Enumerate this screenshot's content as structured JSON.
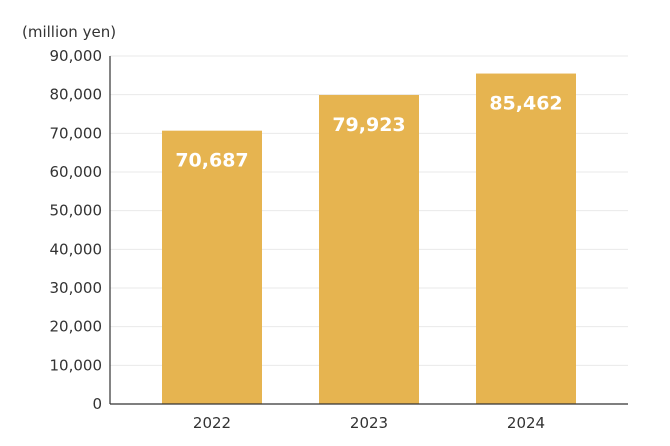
{
  "chart_data": {
    "type": "bar",
    "unit_label": "(million yen)",
    "title": "",
    "xlabel": "",
    "ylabel": "",
    "categories": [
      "2022",
      "2023",
      "2024"
    ],
    "values": [
      70687,
      79923,
      85462
    ],
    "value_labels": [
      "70,687",
      "79,923",
      "85,462"
    ],
    "y_ticks": [
      0,
      10000,
      20000,
      30000,
      40000,
      50000,
      60000,
      70000,
      80000,
      90000
    ],
    "y_tick_labels": [
      "0",
      "10,000",
      "20,000",
      "30,000",
      "40,000",
      "50,000",
      "60,000",
      "70,000",
      "80,000",
      "90,000"
    ],
    "ylim": [
      0,
      90000
    ],
    "grid": true,
    "bar_color": "#E6B450",
    "data_label_color": "#FFFFFF"
  }
}
